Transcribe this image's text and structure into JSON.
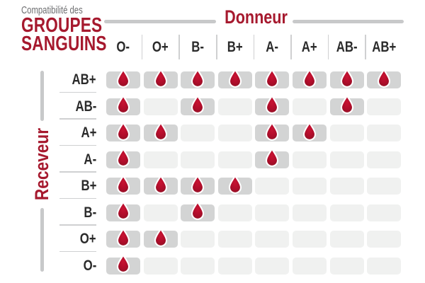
{
  "title": {
    "line1": "Compatibilité des",
    "line2": "GROUPES",
    "line3": "SANGUINS"
  },
  "donor_header": "Donneur",
  "recipient_header": "Receveur",
  "donors": [
    "O-",
    "O+",
    "B-",
    "B+",
    "A-",
    "A+",
    "AB-",
    "AB+"
  ],
  "recipients": [
    "AB+",
    "AB-",
    "A+",
    "A-",
    "B+",
    "B-",
    "O+",
    "O-"
  ],
  "compatibility": [
    [
      1,
      1,
      1,
      1,
      1,
      1,
      1,
      1
    ],
    [
      1,
      0,
      1,
      0,
      1,
      0,
      1,
      0
    ],
    [
      1,
      1,
      0,
      0,
      1,
      1,
      0,
      0
    ],
    [
      1,
      0,
      0,
      0,
      1,
      0,
      0,
      0
    ],
    [
      1,
      1,
      1,
      1,
      0,
      0,
      0,
      0
    ],
    [
      1,
      0,
      1,
      0,
      0,
      0,
      0,
      0
    ],
    [
      1,
      1,
      0,
      0,
      0,
      0,
      0,
      0
    ],
    [
      1,
      0,
      0,
      0,
      0,
      0,
      0,
      0
    ]
  ],
  "icons": {
    "compatible": "blood-drop-icon"
  },
  "colors": {
    "accent_red": "#a6192e",
    "drop_bright": "#c81332",
    "drop_mid": "#b00d2b",
    "drop_dark": "#8d1124",
    "cell_filled": "#d3d4d4",
    "cell_empty": "#f0f1f0",
    "line_gray": "#cfd0d1",
    "bar_gray": "#c8c9ca",
    "text_dark": "#2b2b2b",
    "subtitle_gray": "#6d6e70"
  },
  "chart_data": {
    "type": "heatmap",
    "title": "Compatibilité des groupes sanguins",
    "x_label": "Donneur",
    "y_label": "Receveur",
    "x_categories": [
      "O-",
      "O+",
      "B-",
      "B+",
      "A-",
      "A+",
      "AB-",
      "AB+"
    ],
    "y_categories": [
      "AB+",
      "AB-",
      "A+",
      "A-",
      "B+",
      "B-",
      "O+",
      "O-"
    ],
    "values": [
      [
        1,
        1,
        1,
        1,
        1,
        1,
        1,
        1
      ],
      [
        1,
        0,
        1,
        0,
        1,
        0,
        1,
        0
      ],
      [
        1,
        1,
        0,
        0,
        1,
        1,
        0,
        0
      ],
      [
        1,
        0,
        0,
        0,
        1,
        0,
        0,
        0
      ],
      [
        1,
        1,
        1,
        1,
        0,
        0,
        0,
        0
      ],
      [
        1,
        0,
        1,
        0,
        0,
        0,
        0,
        0
      ],
      [
        1,
        1,
        0,
        0,
        0,
        0,
        0,
        0
      ],
      [
        1,
        0,
        0,
        0,
        0,
        0,
        0,
        0
      ]
    ],
    "value_meaning": "1 = compatible (goutte de sang affichée), 0 = incompatible",
    "legend_position": "none",
    "grid": false
  }
}
